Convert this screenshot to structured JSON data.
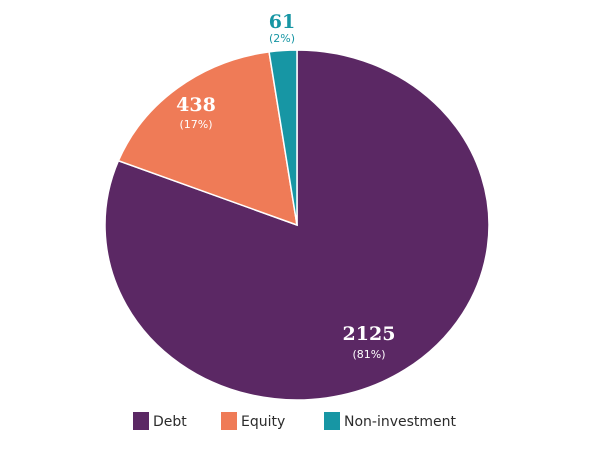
{
  "chart_data": {
    "type": "pie",
    "slices": [
      {
        "name": "Debt",
        "value": 2125,
        "value_label": "2125",
        "percent_label": "(81%)",
        "color": "#5b2864"
      },
      {
        "name": "Equity",
        "value": 438,
        "value_label": "438",
        "percent_label": "(17%)",
        "color": "#ef7b57"
      },
      {
        "name": "Non-investment",
        "value": 61,
        "value_label": "61",
        "percent_label": "(2%)",
        "color": "#1796a4"
      }
    ],
    "legend": {
      "placement": "bottom",
      "items": [
        {
          "label": "Debt",
          "color": "#5b2864"
        },
        {
          "label": "Equity",
          "color": "#ef7b57"
        },
        {
          "label": "Non-investment",
          "color": "#1796a4"
        }
      ]
    },
    "start": "12 o'clock",
    "direction": "clockwise"
  }
}
